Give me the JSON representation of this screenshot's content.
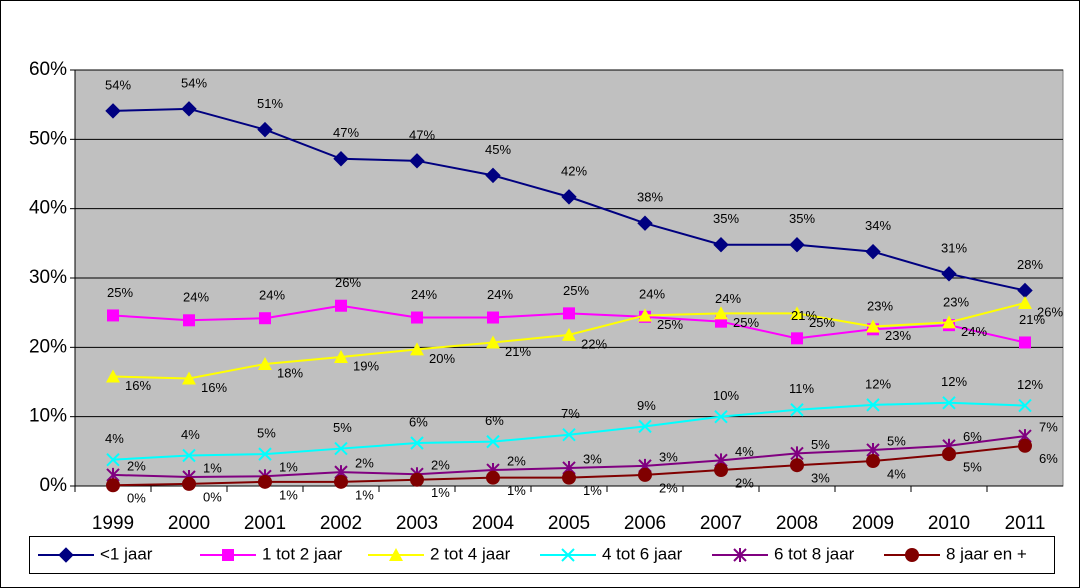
{
  "chart_data": {
    "type": "line",
    "categories": [
      "1999",
      "2000",
      "2001",
      "2002",
      "2003",
      "2004",
      "2005",
      "2006",
      "2007",
      "2008",
      "2009",
      "2010",
      "2011"
    ],
    "ylim": [
      0,
      60
    ],
    "yticks": [
      {
        "value": 0,
        "label": "0%"
      },
      {
        "value": 10,
        "label": "10%"
      },
      {
        "value": 20,
        "label": "20%"
      },
      {
        "value": 30,
        "label": "30%"
      },
      {
        "value": 40,
        "label": "40%"
      },
      {
        "value": 50,
        "label": "50%"
      },
      {
        "value": 60,
        "label": "60%"
      }
    ],
    "grid": true,
    "legend": "bottom",
    "series": [
      {
        "name": "<1 jaar",
        "color": "#000080",
        "marker": "diamond",
        "values": [
          54.1,
          54.4,
          51.4,
          47.2,
          46.9,
          44.8,
          41.7,
          37.9,
          34.8,
          34.8,
          33.8,
          30.6,
          28.2
        ],
        "value_labels": [
          "54%",
          "54%",
          "51%",
          "47%",
          "47%",
          "45%",
          "42%",
          "38%",
          "35%",
          "35%",
          "34%",
          "31%",
          "28%"
        ]
      },
      {
        "name": "1 tot 2 jaar",
        "color": "#ff00ff",
        "marker": "square",
        "values": [
          24.6,
          23.9,
          24.2,
          26.0,
          24.3,
          24.3,
          24.9,
          24.4,
          23.7,
          21.3,
          22.6,
          23.2,
          20.7
        ],
        "value_labels": [
          "25%",
          "24%",
          "24%",
          "26%",
          "24%",
          "24%",
          "25%",
          "24%",
          "24%",
          "21%",
          "23%",
          "23%",
          "21%"
        ]
      },
      {
        "name": "2 tot 4 jaar",
        "color": "#ffff00",
        "marker": "triangle",
        "values": [
          15.8,
          15.5,
          17.6,
          18.6,
          19.7,
          20.7,
          21.8,
          24.6,
          24.9,
          24.9,
          23.0,
          23.6,
          26.4
        ],
        "value_labels": [
          "16%",
          "16%",
          "18%",
          "19%",
          "20%",
          "21%",
          "22%",
          "25%",
          "25%",
          "25%",
          "23%",
          "24%",
          "26%"
        ]
      },
      {
        "name": "4 tot 6 jaar",
        "color": "#00ffff",
        "marker": "x",
        "values": [
          3.8,
          4.4,
          4.6,
          5.4,
          6.2,
          6.4,
          7.4,
          8.6,
          10.0,
          11.0,
          11.7,
          12.0,
          11.6
        ],
        "value_labels": [
          "4%",
          "4%",
          "5%",
          "5%",
          "6%",
          "6%",
          "7%",
          "9%",
          "10%",
          "11%",
          "12%",
          "12%",
          "12%"
        ]
      },
      {
        "name": "6 tot 8 jaar",
        "color": "#800080",
        "marker": "star",
        "values": [
          1.6,
          1.3,
          1.4,
          2.0,
          1.7,
          2.3,
          2.6,
          2.9,
          3.7,
          4.7,
          5.2,
          5.8,
          7.2
        ],
        "value_labels": [
          "2%",
          "1%",
          "1%",
          "2%",
          "2%",
          "2%",
          "3%",
          "3%",
          "4%",
          "5%",
          "5%",
          "6%",
          "7%"
        ]
      },
      {
        "name": "8 jaar en +",
        "color": "#800000",
        "marker": "circle",
        "values": [
          0.1,
          0.3,
          0.6,
          0.6,
          0.9,
          1.2,
          1.2,
          1.6,
          2.3,
          3.0,
          3.6,
          4.6,
          5.8
        ],
        "value_labels": [
          "0%",
          "0%",
          "1%",
          "1%",
          "1%",
          "1%",
          "1%",
          "2%",
          "2%",
          "3%",
          "4%",
          "5%",
          "6%"
        ]
      }
    ]
  }
}
